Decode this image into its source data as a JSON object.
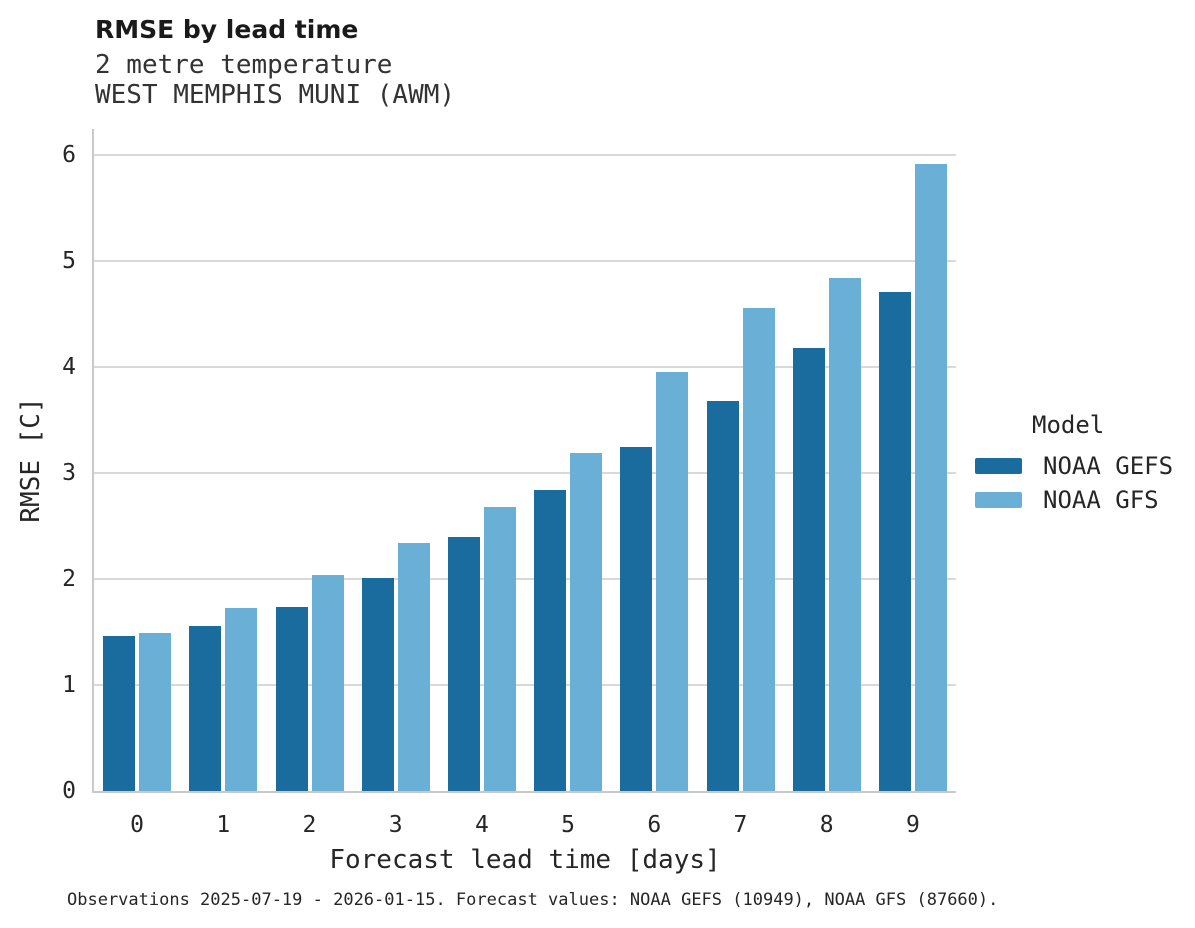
{
  "chart_data": {
    "type": "bar",
    "title": "RMSE by lead time",
    "subtitle1": "2 metre temperature",
    "subtitle2": "WEST MEMPHIS MUNI (AWM)",
    "categories": [
      "0",
      "1",
      "2",
      "3",
      "4",
      "5",
      "6",
      "7",
      "8",
      "9"
    ],
    "series": [
      {
        "name": "NOAA GEFS",
        "color": "#1a6c9e",
        "values": [
          1.46,
          1.56,
          1.74,
          2.01,
          2.4,
          2.84,
          3.25,
          3.68,
          4.18,
          4.71
        ]
      },
      {
        "name": "NOAA GFS",
        "color": "#69afd6",
        "values": [
          1.49,
          1.73,
          2.04,
          2.34,
          2.68,
          3.19,
          3.96,
          4.56,
          4.84,
          5.92
        ]
      }
    ],
    "xlabel": "Forecast lead time [days]",
    "ylabel": "RMSE [C]",
    "ylim": [
      0,
      6.25
    ],
    "yticks": [
      0,
      1,
      2,
      3,
      4,
      5,
      6
    ],
    "grid": "horizontal",
    "legend_title": "Model",
    "legend_position": "right"
  },
  "footer": {
    "caption": "Observations 2025-07-19 - 2026-01-15. Forecast values: NOAA GEFS (10949), NOAA GFS (87660)."
  },
  "colors": {
    "gridline": "#d9d9d9",
    "spine": "#c9c9c9",
    "text": "#262626"
  }
}
